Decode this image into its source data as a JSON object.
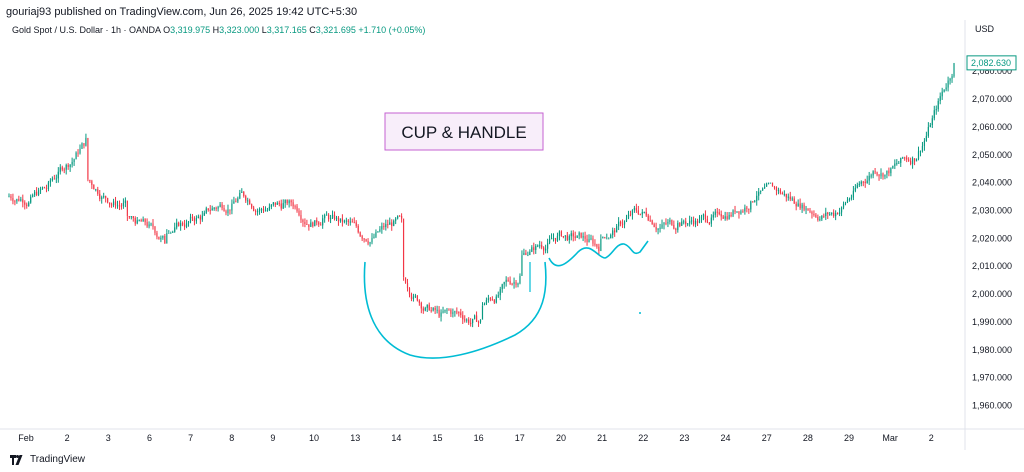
{
  "header": {
    "published": "gouriaj93 published on TradingView.com, Jun 26, 2025 19:42 UTC+5:30",
    "symbol": "Gold Spot / U.S. Dollar · 1h · OANDA",
    "o_label": "O",
    "o_value": "3,319.975",
    "h_label": "H",
    "h_value": "3,323.000",
    "l_label": "L",
    "l_value": "3,317.165",
    "c_label": "C",
    "c_value": "3,321.695",
    "change": "+1.710 (+0.05%)"
  },
  "footer": {
    "brand": "TradingView"
  },
  "colors": {
    "up": "#089981",
    "down": "#f23645",
    "drawing": "#00bcd4",
    "box_border": "#c561d1"
  },
  "chart_data": {
    "type": "candlestick",
    "currency": "USD",
    "last_price": "2,082.630",
    "ylim": [
      1953,
      2093
    ],
    "y_ticks": [
      {
        "v": 2080,
        "t": "2,080.000"
      },
      {
        "v": 2070,
        "t": "2,070.000"
      },
      {
        "v": 2060,
        "t": "2,060.000"
      },
      {
        "v": 2050,
        "t": "2,050.000"
      },
      {
        "v": 2040,
        "t": "2,040.000"
      },
      {
        "v": 2030,
        "t": "2,030.000"
      },
      {
        "v": 2020,
        "t": "2,020.000"
      },
      {
        "v": 2010,
        "t": "2,010.000"
      },
      {
        "v": 2000,
        "t": "2,000.000"
      },
      {
        "v": 1990,
        "t": "1,990.000"
      },
      {
        "v": 1980,
        "t": "1,980.000"
      },
      {
        "v": 1970,
        "t": "1,970.000"
      },
      {
        "v": 1960,
        "t": "1,960.000"
      }
    ],
    "x_ticks": [
      "Feb",
      "2",
      "3",
      "6",
      "7",
      "8",
      "9",
      "10",
      "13",
      "14",
      "15",
      "16",
      "17",
      "20",
      "21",
      "22",
      "23",
      "24",
      "27",
      "28",
      "29",
      "Mar",
      "2"
    ],
    "bars_per_session": 20,
    "session_closes": [
      2038,
      2055,
      2032,
      2019,
      2028,
      2036,
      2032,
      2027,
      2021,
      2026,
      1992,
      1990,
      2006,
      2021,
      2017,
      2030,
      2025,
      2028,
      2036,
      2033,
      2029,
      2045,
      2049,
      2082
    ],
    "session_highs": [
      2056,
      2065,
      2041,
      2028,
      2038,
      2044,
      2039,
      2034,
      2030,
      2029,
      2006,
      2008,
      2015,
      2026,
      2032,
      2035,
      2032,
      2041,
      2038,
      2040,
      2039,
      2051,
      2056,
      2088
    ],
    "session_lows": [
      2030,
      2032,
      2022,
      2014,
      2022,
      2028,
      2024,
      2020,
      2012,
      1992,
      1985,
      1988,
      1996,
      2014,
      2012,
      2020,
      2016,
      2024,
      2026,
      2024,
      2026,
      2028,
      2040,
      2048
    ],
    "annotations": [
      {
        "type": "label",
        "text": "CUP & HANDLE"
      },
      {
        "type": "cup"
      },
      {
        "type": "handle"
      }
    ]
  }
}
